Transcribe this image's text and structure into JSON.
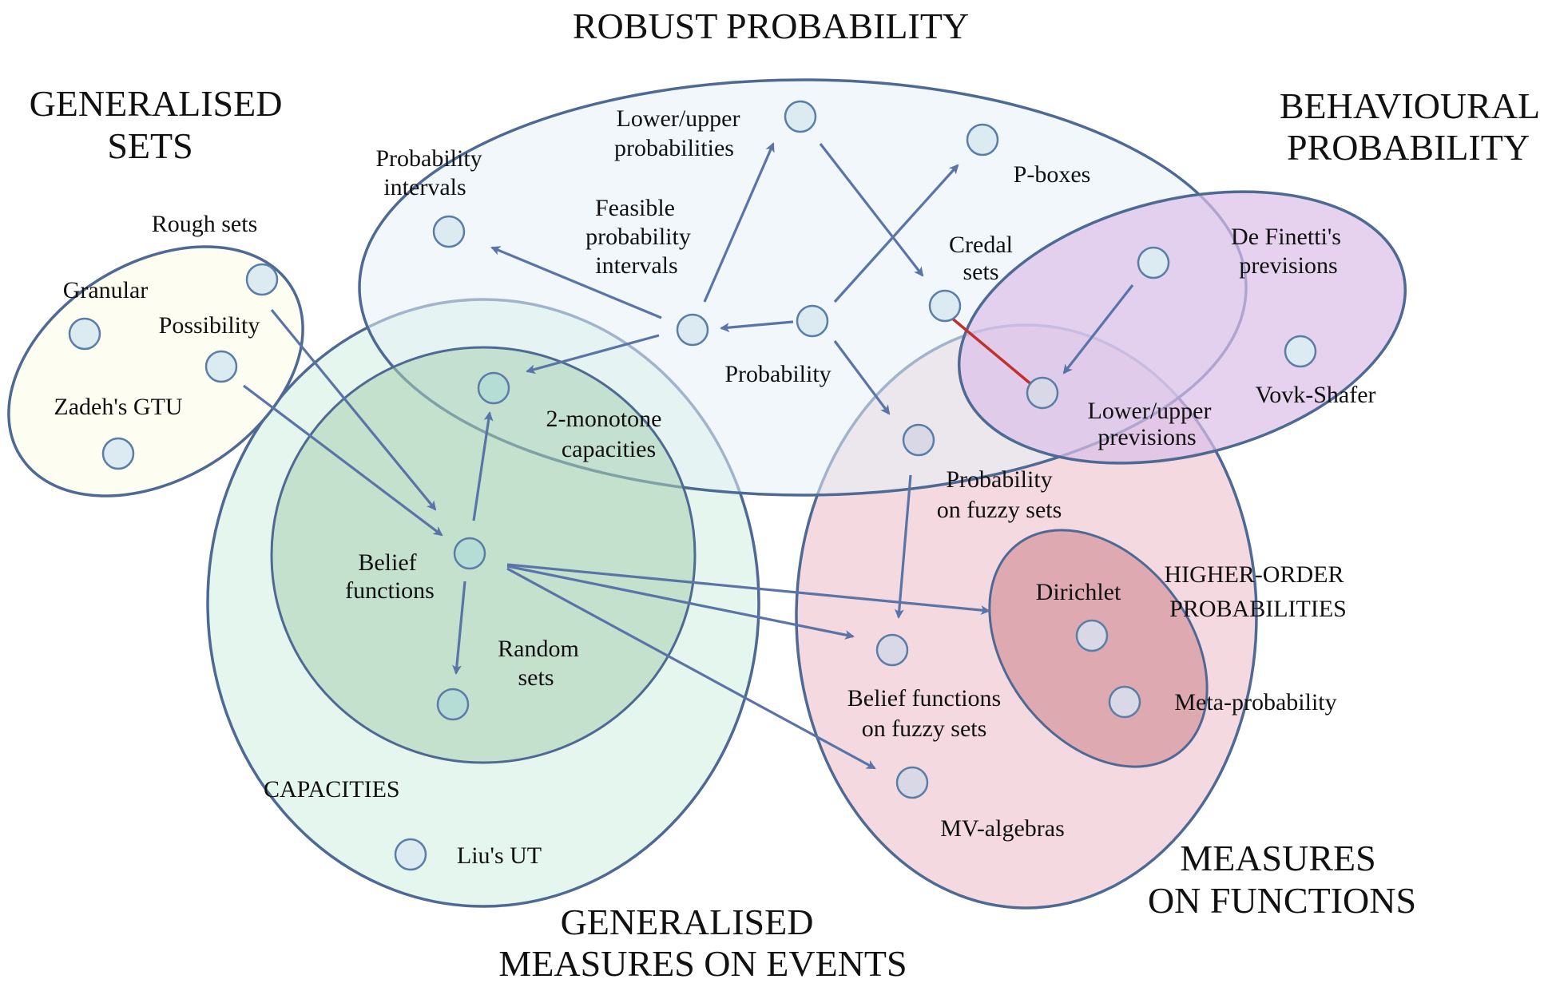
{
  "regions": {
    "robust_probability": "ROBUST PROBABILITY",
    "generalised_sets": [
      "GENERALISED",
      "SETS"
    ],
    "behavioural_probability": [
      "BEHAVIOURAL",
      "PROBABILITY"
    ],
    "capacities": "CAPACITIES",
    "generalised_measures": [
      "GENERALISED",
      "MEASURES ON EVENTS"
    ],
    "measures_on_functions": [
      "MEASURES",
      "ON FUNCTIONS"
    ],
    "higher_order": [
      "HIGHER-ORDER",
      "PROBABILITIES"
    ]
  },
  "nodes": {
    "rough_sets": "Rough sets",
    "granular": "Granular",
    "possibility": "Possibility",
    "zadeh": "Zadeh's GTU",
    "probability_intervals": [
      "Probability",
      "intervals"
    ],
    "lower_upper_probabilities": [
      "Lower/upper",
      "probabilities"
    ],
    "feasible": [
      "Feasible",
      "probability",
      "intervals"
    ],
    "p_boxes": "P-boxes",
    "credal_sets": [
      "Credal",
      "sets"
    ],
    "probability": "Probability",
    "two_monotone": [
      "2-monotone",
      "capacities"
    ],
    "de_finetti": [
      "De Finetti's",
      "previsions"
    ],
    "vovk_shafer": "Vovk-Shafer",
    "lower_upper_previsions": [
      "Lower/upper",
      "previsions"
    ],
    "probability_fuzzy": [
      "Probability",
      "on fuzzy sets"
    ],
    "belief_functions": [
      "Belief",
      "functions"
    ],
    "random_sets": [
      "Random",
      "sets"
    ],
    "dirichlet": "Dirichlet",
    "meta_probability": "Meta-probability",
    "belief_fuzzy": [
      "Belief functions",
      "on fuzzy sets"
    ],
    "mv_algebras": "MV-algebras",
    "lius_ut": "Liu's UT"
  },
  "colors": {
    "generalised_sets_fill": "#fdfdf0",
    "robust_fill": "#e6f0f8",
    "behavioural_fill": "#dcbfe8",
    "generalised_measures_fill": "#dff4ea",
    "capacities_fill": "#b0d4b8",
    "measures_functions_fill": "#f2d2dc",
    "higher_order_fill": "#d89ca4",
    "outline": "#4e6a94",
    "arrow": "#5b74a8",
    "red_link": "#c0302c"
  }
}
